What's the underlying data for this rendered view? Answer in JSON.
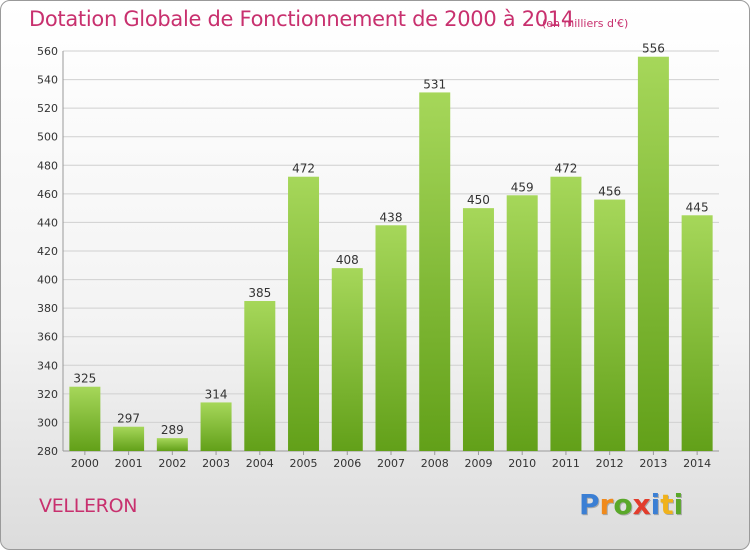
{
  "title": "Dotation Globale de Fonctionnement de 2000 à 2014",
  "unit": "(en milliers d'€)",
  "commune": "VELLERON",
  "logo": {
    "text": "Proxiti",
    "colors": [
      "#3b7fd4",
      "#f08a1c",
      "#5aa82a",
      "#e23c2c",
      "#3b7fd4",
      "#f0b21c",
      "#5aa82a"
    ]
  },
  "colors": {
    "title": "#c8306e",
    "bar_light": "#a6d75a",
    "bar_dark": "#62a019",
    "grid": "#d0d0d0"
  },
  "chart_data": {
    "type": "bar",
    "categories": [
      "2000",
      "2001",
      "2002",
      "2003",
      "2004",
      "2005",
      "2006",
      "2007",
      "2008",
      "2009",
      "2010",
      "2011",
      "2012",
      "2013",
      "2014"
    ],
    "values": [
      325,
      297,
      289,
      314,
      385,
      472,
      408,
      438,
      531,
      450,
      459,
      472,
      456,
      556,
      445
    ],
    "ylim": [
      280,
      560
    ],
    "yticks": [
      280,
      300,
      320,
      340,
      360,
      380,
      400,
      420,
      440,
      460,
      480,
      500,
      520,
      540,
      560
    ],
    "grid": true,
    "data_labels": true
  }
}
